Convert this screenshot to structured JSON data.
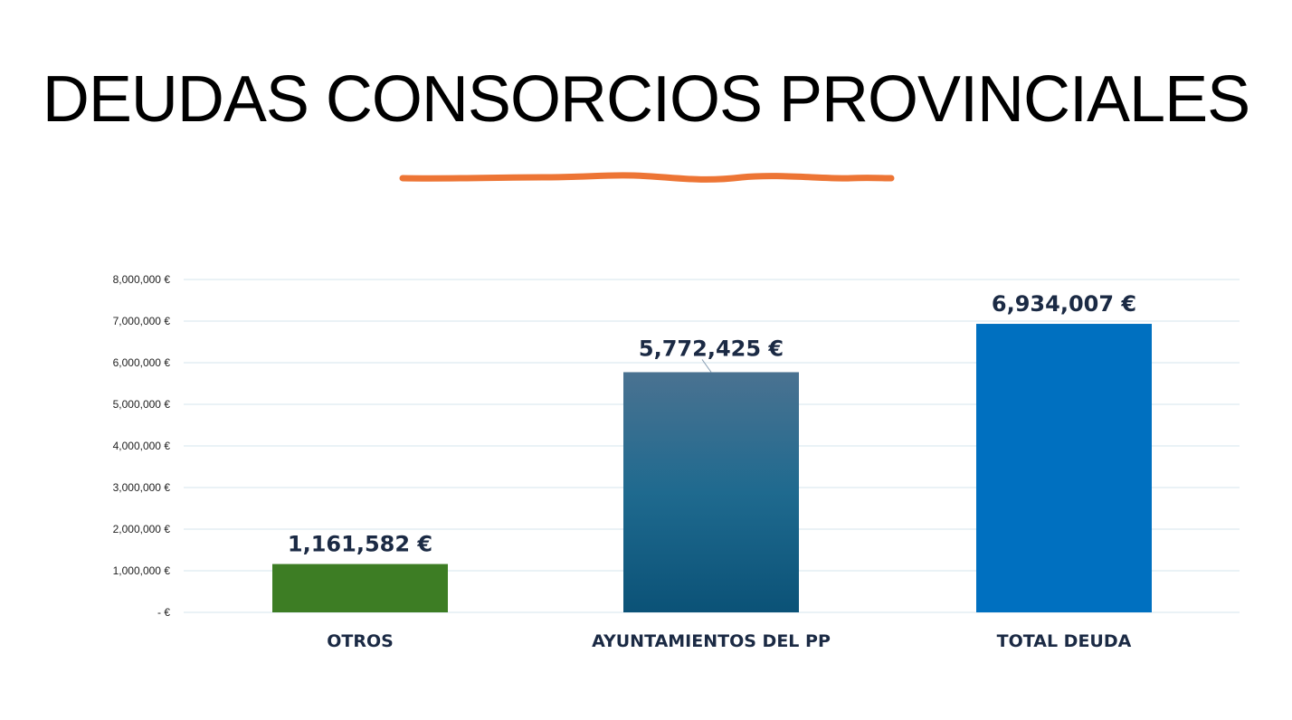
{
  "slide": {
    "title": "DEUDAS CONSORCIOS PROVINCIALES"
  },
  "colors": {
    "accent_underline": "#ed7535",
    "gridline": "#d6e4ee",
    "label_text": "#1b2a44",
    "bar_otros": "#3d7d24",
    "bar_ayuntamientos_top": "#4a7291",
    "bar_ayuntamientos_bottom": "#0b5277",
    "bar_total": "#0070c0"
  },
  "chart_data": {
    "type": "bar",
    "title": "",
    "xlabel": "",
    "ylabel": "",
    "categories": [
      "OTROS",
      "AYUNTAMIENTOS DEL PP",
      "TOTAL DEUDA"
    ],
    "values": [
      1161582,
      5772425,
      6934007
    ],
    "data_labels": [
      "1,161,582 €",
      "5,772,425 €",
      "6,934,007 €"
    ],
    "ylim": [
      0,
      8000000
    ],
    "yticks": [
      0,
      1000000,
      2000000,
      3000000,
      4000000,
      5000000,
      6000000,
      7000000,
      8000000
    ],
    "ytick_labels": [
      "-  €",
      "1,000,000 €",
      "2,000,000 €",
      "3,000,000 €",
      "4,000,000 €",
      "5,000,000 €",
      "6,000,000 €",
      "7,000,000 €",
      "8,000,000 €"
    ],
    "grid": true,
    "legend": "none"
  }
}
